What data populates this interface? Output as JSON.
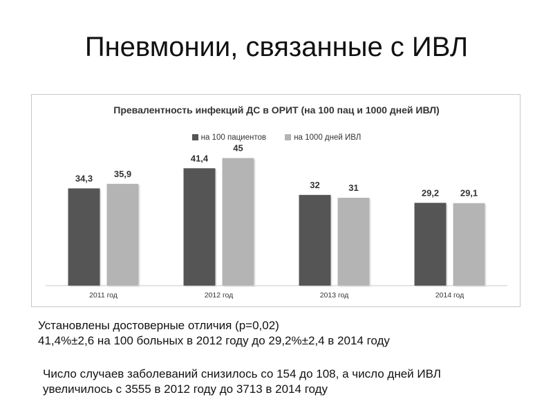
{
  "slide": {
    "title": "Пневмонии, связанные с ИВЛ",
    "note1_line1": "Установлены достоверные отличия (р=0,02)",
    "note1_line2": "41,4%±2,6 на 100 больных в 2012 году до 29,2%±2,4 в 2014 году",
    "note2": "Число случаев заболеваний снизилось со 154 до 108, а число дней ИВЛ увеличилось с 3555 в 2012 году до 3713 в 2014 году"
  },
  "chart_data": {
    "type": "bar",
    "title": "Превалентность инфекций ДС в ОРИТ (на 100 пац и 1000 дней ИВЛ)",
    "categories": [
      "2011 год",
      "2012 год",
      "2013 год",
      "2014 год"
    ],
    "series": [
      {
        "name": "на 100 пациентов",
        "values": [
          34.3,
          41.4,
          32,
          29.2
        ],
        "labels": [
          "34,3",
          "41,4",
          "32",
          "29,2"
        ],
        "color": "#555555"
      },
      {
        "name": "на 1000 дней ИВЛ",
        "values": [
          35.9,
          45,
          31,
          29.1
        ],
        "labels": [
          "35,9",
          "45",
          "31",
          "29,1"
        ],
        "color": "#b4b4b4"
      }
    ],
    "ylim": [
      0,
      50
    ],
    "legend_position": "top",
    "grid": false
  }
}
